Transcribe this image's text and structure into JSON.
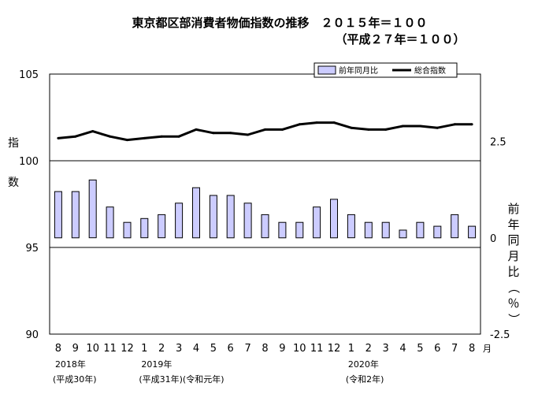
{
  "chart_data": {
    "type": "bar",
    "title_line1": "東京都区部消費者物価指数の推移　２０１５年＝１００",
    "title_line2": "（平成２７年＝１００）",
    "left_axis_label": "指数",
    "right_axis_label": "前年同月比（％）",
    "month_unit": "月",
    "left_ylim": [
      90,
      105
    ],
    "left_yticks": [
      "90",
      "95",
      "100",
      "105"
    ],
    "right_ylim": [
      -2.5,
      4.25
    ],
    "right_yticks": [
      "-2.5",
      "0",
      "2.5"
    ],
    "categories": [
      "8",
      "9",
      "10",
      "11",
      "12",
      "1",
      "2",
      "3",
      "4",
      "5",
      "6",
      "7",
      "8",
      "9",
      "10",
      "11",
      "12",
      "1",
      "2",
      "3",
      "4",
      "5",
      "6",
      "7",
      "8"
    ],
    "year_labels": [
      {
        "index": 0,
        "year": "2018年",
        "era": "(平成30年)"
      },
      {
        "index": 5,
        "year": "2019年",
        "era": "(平成31年)(令和元年)"
      },
      {
        "index": 17,
        "year": "2020年",
        "era": "(令和2年)"
      }
    ],
    "series": [
      {
        "name": "前年同月比",
        "type": "bar",
        "axis": "right",
        "color": "#ccccff",
        "values": [
          1.2,
          1.2,
          1.5,
          0.8,
          0.4,
          0.5,
          0.6,
          0.9,
          1.3,
          1.1,
          1.1,
          0.9,
          0.6,
          0.4,
          0.4,
          0.8,
          1.0,
          0.6,
          0.4,
          0.4,
          0.2,
          0.4,
          0.3,
          0.6,
          0.3
        ]
      },
      {
        "name": "総合指数",
        "type": "line",
        "axis": "left",
        "color": "#000000",
        "values": [
          101.3,
          101.4,
          101.7,
          101.4,
          101.2,
          101.3,
          101.4,
          101.4,
          101.8,
          101.6,
          101.6,
          101.5,
          101.8,
          101.8,
          102.1,
          102.2,
          102.2,
          101.9,
          101.8,
          101.8,
          102.0,
          102.0,
          101.9,
          102.1,
          102.1
        ]
      }
    ]
  }
}
